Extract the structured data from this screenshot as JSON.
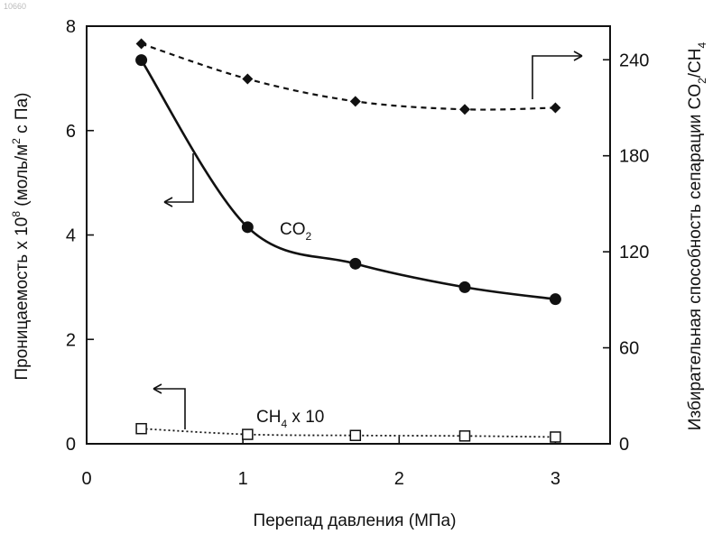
{
  "watermark": "10660",
  "chart_data": {
    "type": "line",
    "x_axis": {
      "label": "Перепад давления (МПа)",
      "range": [
        0,
        3.35
      ],
      "ticks": [
        0,
        1,
        2,
        3
      ],
      "tick_labels": [
        "0",
        "1",
        "2",
        "3"
      ]
    },
    "y_axis_left": {
      "label_parts": [
        "Проницаемость х 10",
        "8",
        " (моль/м",
        "2",
        " с Па)"
      ],
      "range": [
        0,
        8
      ],
      "ticks": [
        0,
        2,
        4,
        6,
        8
      ],
      "tick_labels": [
        "0",
        "2",
        "4",
        "6",
        "8"
      ]
    },
    "y_axis_right": {
      "label_parts": [
        "Избирательная способность сепарации CO",
        "2",
        "/CH",
        "4"
      ],
      "range": [
        0,
        261
      ],
      "ticks": [
        0,
        60,
        120,
        180,
        240
      ],
      "tick_labels": [
        "0",
        "60",
        "120",
        "180",
        "240"
      ]
    },
    "series": [
      {
        "label_parts": [
          "CO",
          "2"
        ],
        "axis": "left",
        "marker": "filled-circle",
        "line": "solid",
        "x": [
          0.35,
          1.03,
          1.72,
          2.42,
          3.0
        ],
        "y": [
          7.35,
          4.15,
          3.45,
          3.0,
          2.77
        ]
      },
      {
        "label_parts": [
          "CH",
          "4",
          " x 10"
        ],
        "axis": "left",
        "marker": "open-square",
        "line": "dotted",
        "x": [
          0.35,
          1.03,
          1.72,
          2.42,
          3.0
        ],
        "y": [
          0.29,
          0.18,
          0.16,
          0.15,
          0.13
        ]
      },
      {
        "axis": "right",
        "marker": "filled-diamond",
        "line": "dashed",
        "x": [
          0.35,
          1.03,
          1.72,
          2.42,
          3.0
        ],
        "y": [
          250,
          228,
          214,
          209,
          210
        ]
      }
    ],
    "grid": false,
    "legend": "none"
  }
}
